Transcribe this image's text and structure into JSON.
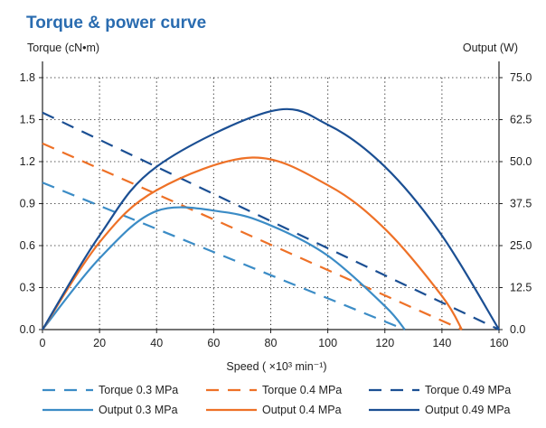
{
  "chart_data": {
    "type": "line",
    "title": "Torque & power curve",
    "ylabel_left": "Torque (cN•m)",
    "ylabel_right": "Output (W)",
    "xlabel": "Speed ( ×10³ min⁻¹)",
    "xlim": [
      0,
      160
    ],
    "ylim_left": [
      0,
      1.8
    ],
    "ylim_right": [
      0,
      75
    ],
    "x_ticks": [
      "0",
      "20",
      "40",
      "60",
      "80",
      "100",
      "120",
      "140",
      "160"
    ],
    "y_ticks_left": [
      "0.0",
      "0.3",
      "0.6",
      "0.9",
      "1.2",
      "1.5",
      "1.8"
    ],
    "y_ticks_right": [
      "0.0",
      "12.5",
      "25.0",
      "37.5",
      "50.0",
      "62.5",
      "75.0"
    ],
    "grid": true,
    "series": [
      {
        "name": "Torque 0.3 MPa",
        "axis": "left",
        "style": "dashed",
        "color": "#3b8cc6",
        "x": [
          0,
          127
        ],
        "y": [
          1.05,
          0.0
        ]
      },
      {
        "name": "Torque 0.4 MPa",
        "axis": "left",
        "style": "dashed",
        "color": "#ee7127",
        "x": [
          0,
          147
        ],
        "y": [
          1.33,
          0.0
        ]
      },
      {
        "name": "Torque 0.49 MPa",
        "axis": "left",
        "style": "dashed",
        "color": "#1b4f93",
        "x": [
          0,
          160
        ],
        "y": [
          1.55,
          0.0
        ]
      },
      {
        "name": "Output 0.3 MPa",
        "axis": "right",
        "style": "solid",
        "color": "#3b8cc6",
        "x": [
          0,
          20,
          40,
          63.5,
          80,
          100,
          120,
          127
        ],
        "y": [
          0,
          21.2,
          35.3,
          35.0,
          31.0,
          22.0,
          7.0,
          0
        ]
      },
      {
        "name": "Output 0.4 MPa",
        "axis": "right",
        "style": "solid",
        "color": "#ee7127",
        "x": [
          0,
          20,
          40,
          73.5,
          100,
          120,
          140,
          147
        ],
        "y": [
          0,
          26.0,
          41.5,
          51.2,
          43.0,
          30.0,
          10.0,
          0
        ]
      },
      {
        "name": "Output 0.49 MPa",
        "axis": "right",
        "style": "solid",
        "color": "#1b4f93",
        "x": [
          0,
          20,
          40,
          80,
          100,
          120,
          140,
          160
        ],
        "y": [
          0,
          28.0,
          48.5,
          65.0,
          61.0,
          48.5,
          28.0,
          0
        ]
      }
    ],
    "legend": [
      [
        "Torque 0.3 MPa",
        "Torque 0.4 MPa",
        "Torque 0.49 MPa"
      ],
      [
        "Output 0.3 MPa",
        "Output 0.4 MPa",
        "Output 0.49 MPa"
      ]
    ],
    "legend_position": "bottom"
  },
  "colors": {
    "title": "#2a6cb0",
    "axis": "#222222",
    "grid": "#333333"
  }
}
